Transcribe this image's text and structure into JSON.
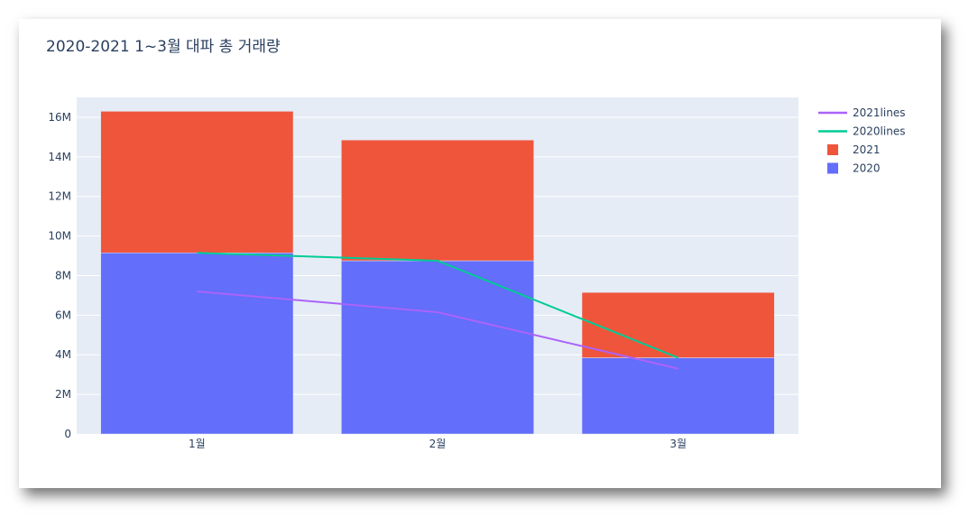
{
  "colors": {
    "plot_bg": "#e5ecf6",
    "grid": "#ffffff",
    "bar_2020": "#636efa",
    "bar_2021": "#ef553b",
    "line_2021": "#ab63fa",
    "line_2020": "#00cc96"
  },
  "chart_data": {
    "type": "bar",
    "title": "2020-2021 1~3월 대파 총 거래량",
    "xlabel": "",
    "ylabel": "",
    "categories": [
      "1월",
      "2월",
      "3월"
    ],
    "ylim": [
      0,
      17000000
    ],
    "yticks": [
      0,
      2000000,
      4000000,
      6000000,
      8000000,
      10000000,
      12000000,
      14000000,
      16000000
    ],
    "ytick_labels": [
      "0",
      "2M",
      "4M",
      "6M",
      "8M",
      "10M",
      "12M",
      "14M",
      "16M"
    ],
    "barmode": "stack",
    "grid": true,
    "legend_position": "top-right",
    "series": [
      {
        "name": "2020",
        "kind": "bar",
        "values": [
          9150000,
          8750000,
          3850000
        ]
      },
      {
        "name": "2021",
        "kind": "bar",
        "values": [
          7150000,
          6100000,
          3300000
        ]
      },
      {
        "name": "2021lines",
        "kind": "line",
        "values": [
          7200000,
          6150000,
          3300000
        ]
      },
      {
        "name": "2020lines",
        "kind": "line",
        "values": [
          9150000,
          8750000,
          3850000
        ]
      }
    ],
    "legend": [
      "2021lines",
      "2020lines",
      "2021",
      "2020"
    ]
  }
}
